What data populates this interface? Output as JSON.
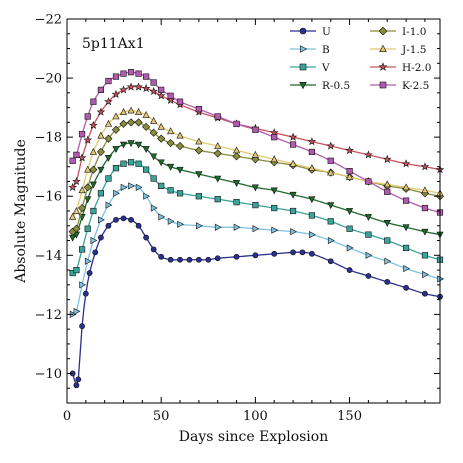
{
  "chart_data": {
    "type": "line",
    "title": "5p11Ax1",
    "xlabel": "Days since Explosion",
    "ylabel": "Absolute Magnitude",
    "xlim": [
      0,
      198
    ],
    "ylim": [
      -22,
      -9
    ],
    "y_inverted": true,
    "x_ticks": [
      0,
      50,
      100,
      150
    ],
    "x_tick_labels": [
      "0",
      "50",
      "100",
      "150"
    ],
    "y_ticks": [
      -22,
      -20,
      -18,
      -16,
      -14,
      -12,
      -10
    ],
    "y_tick_labels": [
      "−22",
      "−20",
      "−18",
      "−16",
      "−14",
      "−12",
      "−10"
    ],
    "grid": false,
    "legend_position": "top-right",
    "series": [
      {
        "name": "U",
        "color": "#2b2f8e",
        "marker": "circle",
        "points": [
          [
            3,
            -10.0
          ],
          [
            5,
            -9.6
          ],
          [
            6,
            -9.8
          ],
          [
            8,
            -11.6
          ],
          [
            10,
            -12.7
          ],
          [
            12,
            -13.4
          ],
          [
            15,
            -14.1
          ],
          [
            18,
            -14.6
          ],
          [
            22,
            -15.0
          ],
          [
            26,
            -15.2
          ],
          [
            30,
            -15.25
          ],
          [
            34,
            -15.2
          ],
          [
            38,
            -15.0
          ],
          [
            42,
            -14.6
          ],
          [
            46,
            -14.2
          ],
          [
            50,
            -13.95
          ],
          [
            55,
            -13.85
          ],
          [
            60,
            -13.85
          ],
          [
            65,
            -13.85
          ],
          [
            70,
            -13.85
          ],
          [
            75,
            -13.85
          ],
          [
            80,
            -13.9
          ],
          [
            90,
            -13.95
          ],
          [
            100,
            -14.0
          ],
          [
            110,
            -14.05
          ],
          [
            120,
            -14.1
          ],
          [
            125,
            -14.1
          ],
          [
            130,
            -14.05
          ],
          [
            140,
            -13.8
          ],
          [
            150,
            -13.5
          ],
          [
            160,
            -13.3
          ],
          [
            170,
            -13.1
          ],
          [
            180,
            -12.9
          ],
          [
            190,
            -12.7
          ],
          [
            198,
            -12.6
          ]
        ]
      },
      {
        "name": "B",
        "color": "#7ec1e0",
        "marker": "triangle-right",
        "points": [
          [
            3,
            -12.0
          ],
          [
            5,
            -12.1
          ],
          [
            8,
            -13.0
          ],
          [
            11,
            -13.8
          ],
          [
            14,
            -14.5
          ],
          [
            18,
            -15.2
          ],
          [
            22,
            -15.7
          ],
          [
            26,
            -16.1
          ],
          [
            30,
            -16.3
          ],
          [
            34,
            -16.35
          ],
          [
            38,
            -16.3
          ],
          [
            42,
            -16.0
          ],
          [
            46,
            -15.6
          ],
          [
            50,
            -15.3
          ],
          [
            55,
            -15.15
          ],
          [
            60,
            -15.05
          ],
          [
            70,
            -15.0
          ],
          [
            80,
            -14.95
          ],
          [
            90,
            -14.95
          ],
          [
            100,
            -14.9
          ],
          [
            110,
            -14.85
          ],
          [
            120,
            -14.8
          ],
          [
            130,
            -14.7
          ],
          [
            140,
            -14.5
          ],
          [
            150,
            -14.25
          ],
          [
            160,
            -14.0
          ],
          [
            170,
            -13.8
          ],
          [
            180,
            -13.55
          ],
          [
            190,
            -13.35
          ],
          [
            198,
            -13.2
          ]
        ]
      },
      {
        "name": "V",
        "color": "#3aa39a",
        "marker": "square",
        "points": [
          [
            3,
            -13.4
          ],
          [
            5,
            -13.5
          ],
          [
            8,
            -14.2
          ],
          [
            11,
            -14.9
          ],
          [
            14,
            -15.5
          ],
          [
            18,
            -16.1
          ],
          [
            22,
            -16.6
          ],
          [
            26,
            -16.95
          ],
          [
            30,
            -17.1
          ],
          [
            34,
            -17.15
          ],
          [
            38,
            -17.1
          ],
          [
            42,
            -16.9
          ],
          [
            46,
            -16.6
          ],
          [
            50,
            -16.35
          ],
          [
            55,
            -16.2
          ],
          [
            60,
            -16.1
          ],
          [
            70,
            -16.0
          ],
          [
            80,
            -15.9
          ],
          [
            90,
            -15.8
          ],
          [
            100,
            -15.7
          ],
          [
            110,
            -15.6
          ],
          [
            120,
            -15.5
          ],
          [
            130,
            -15.35
          ],
          [
            140,
            -15.15
          ],
          [
            150,
            -14.9
          ],
          [
            160,
            -14.7
          ],
          [
            170,
            -14.5
          ],
          [
            180,
            -14.25
          ],
          [
            190,
            -14.0
          ],
          [
            198,
            -13.85
          ]
        ]
      },
      {
        "name": "R-0.5",
        "color": "#1f6b2d",
        "marker": "triangle-down",
        "points": [
          [
            3,
            -14.6
          ],
          [
            5,
            -14.7
          ],
          [
            8,
            -15.3
          ],
          [
            11,
            -15.9
          ],
          [
            14,
            -16.4
          ],
          [
            18,
            -16.9
          ],
          [
            22,
            -17.3
          ],
          [
            26,
            -17.6
          ],
          [
            30,
            -17.75
          ],
          [
            34,
            -17.8
          ],
          [
            38,
            -17.75
          ],
          [
            42,
            -17.6
          ],
          [
            46,
            -17.35
          ],
          [
            50,
            -17.15
          ],
          [
            55,
            -17.0
          ],
          [
            60,
            -16.9
          ],
          [
            70,
            -16.75
          ],
          [
            80,
            -16.6
          ],
          [
            90,
            -16.45
          ],
          [
            100,
            -16.3
          ],
          [
            110,
            -16.2
          ],
          [
            120,
            -16.05
          ],
          [
            130,
            -15.9
          ],
          [
            140,
            -15.7
          ],
          [
            150,
            -15.5
          ],
          [
            160,
            -15.3
          ],
          [
            170,
            -15.1
          ],
          [
            180,
            -14.95
          ],
          [
            190,
            -14.8
          ],
          [
            198,
            -14.7
          ]
        ]
      },
      {
        "name": "I-1.0",
        "color": "#8a8d3a",
        "marker": "diamond",
        "points": [
          [
            3,
            -14.8
          ],
          [
            5,
            -14.9
          ],
          [
            8,
            -15.6
          ],
          [
            11,
            -16.3
          ],
          [
            14,
            -16.9
          ],
          [
            18,
            -17.5
          ],
          [
            22,
            -17.95
          ],
          [
            26,
            -18.25
          ],
          [
            30,
            -18.45
          ],
          [
            34,
            -18.5
          ],
          [
            38,
            -18.5
          ],
          [
            42,
            -18.35
          ],
          [
            46,
            -18.15
          ],
          [
            50,
            -17.95
          ],
          [
            55,
            -17.8
          ],
          [
            60,
            -17.7
          ],
          [
            70,
            -17.55
          ],
          [
            80,
            -17.45
          ],
          [
            90,
            -17.35
          ],
          [
            100,
            -17.25
          ],
          [
            110,
            -17.15
          ],
          [
            120,
            -17.05
          ],
          [
            130,
            -16.9
          ],
          [
            140,
            -16.8
          ],
          [
            150,
            -16.65
          ],
          [
            160,
            -16.5
          ],
          [
            170,
            -16.35
          ],
          [
            180,
            -16.25
          ],
          [
            190,
            -16.1
          ],
          [
            198,
            -16.0
          ]
        ]
      },
      {
        "name": "J-1.5",
        "color": "#e3c874",
        "marker": "triangle-up",
        "points": [
          [
            3,
            -15.3
          ],
          [
            5,
            -15.5
          ],
          [
            8,
            -16.2
          ],
          [
            11,
            -16.9
          ],
          [
            14,
            -17.5
          ],
          [
            18,
            -18.05
          ],
          [
            22,
            -18.45
          ],
          [
            26,
            -18.7
          ],
          [
            30,
            -18.85
          ],
          [
            34,
            -18.9
          ],
          [
            38,
            -18.85
          ],
          [
            42,
            -18.75
          ],
          [
            46,
            -18.55
          ],
          [
            50,
            -18.35
          ],
          [
            55,
            -18.2
          ],
          [
            60,
            -18.05
          ],
          [
            70,
            -17.85
          ],
          [
            80,
            -17.7
          ],
          [
            90,
            -17.55
          ],
          [
            100,
            -17.4
          ],
          [
            110,
            -17.25
          ],
          [
            120,
            -17.1
          ],
          [
            130,
            -16.95
          ],
          [
            140,
            -16.8
          ],
          [
            150,
            -16.65
          ],
          [
            160,
            -16.5
          ],
          [
            170,
            -16.4
          ],
          [
            180,
            -16.3
          ],
          [
            190,
            -16.2
          ],
          [
            198,
            -16.1
          ]
        ]
      },
      {
        "name": "H-2.0",
        "color": "#c9535e",
        "marker": "star",
        "points": [
          [
            3,
            -16.3
          ],
          [
            5,
            -16.5
          ],
          [
            8,
            -17.3
          ],
          [
            11,
            -17.9
          ],
          [
            14,
            -18.4
          ],
          [
            18,
            -18.85
          ],
          [
            22,
            -19.2
          ],
          [
            26,
            -19.45
          ],
          [
            30,
            -19.6
          ],
          [
            34,
            -19.7
          ],
          [
            38,
            -19.7
          ],
          [
            42,
            -19.65
          ],
          [
            46,
            -19.55
          ],
          [
            50,
            -19.4
          ],
          [
            55,
            -19.25
          ],
          [
            60,
            -19.1
          ],
          [
            70,
            -18.85
          ],
          [
            80,
            -18.65
          ],
          [
            90,
            -18.45
          ],
          [
            100,
            -18.3
          ],
          [
            110,
            -18.15
          ],
          [
            120,
            -18.0
          ],
          [
            130,
            -17.85
          ],
          [
            140,
            -17.7
          ],
          [
            150,
            -17.55
          ],
          [
            160,
            -17.4
          ],
          [
            170,
            -17.25
          ],
          [
            180,
            -17.1
          ],
          [
            190,
            -17.0
          ],
          [
            198,
            -16.9
          ]
        ]
      },
      {
        "name": "K-2.5",
        "color": "#b25aae",
        "marker": "square",
        "points": [
          [
            3,
            -17.2
          ],
          [
            5,
            -17.4
          ],
          [
            8,
            -18.1
          ],
          [
            11,
            -18.7
          ],
          [
            14,
            -19.2
          ],
          [
            18,
            -19.6
          ],
          [
            22,
            -19.9
          ],
          [
            26,
            -20.05
          ],
          [
            30,
            -20.15
          ],
          [
            34,
            -20.2
          ],
          [
            38,
            -20.15
          ],
          [
            42,
            -20.05
          ],
          [
            46,
            -19.85
          ],
          [
            50,
            -19.6
          ],
          [
            55,
            -19.4
          ],
          [
            60,
            -19.2
          ],
          [
            70,
            -18.95
          ],
          [
            80,
            -18.7
          ],
          [
            90,
            -18.45
          ],
          [
            100,
            -18.25
          ],
          [
            110,
            -18.0
          ],
          [
            120,
            -17.75
          ],
          [
            130,
            -17.5
          ],
          [
            140,
            -17.2
          ],
          [
            150,
            -16.85
          ],
          [
            160,
            -16.5
          ],
          [
            170,
            -16.15
          ],
          [
            180,
            -15.85
          ],
          [
            190,
            -15.6
          ],
          [
            198,
            -15.45
          ]
        ]
      }
    ]
  }
}
